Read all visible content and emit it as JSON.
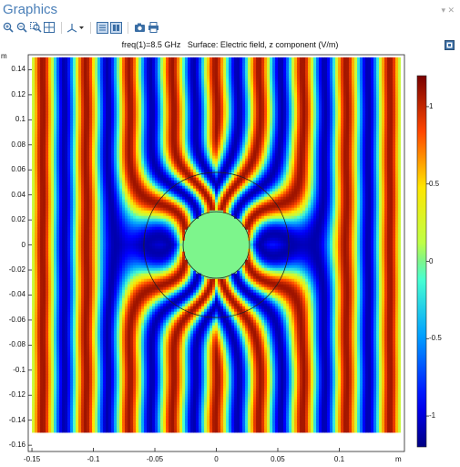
{
  "window": {
    "title": "Graphics",
    "controls": "▾ ✕"
  },
  "toolbar": {
    "buttons": [
      {
        "name": "zoom-in-icon",
        "hint": "Zoom In"
      },
      {
        "name": "zoom-out-icon",
        "hint": "Zoom Out"
      },
      {
        "name": "zoom-box-icon",
        "hint": "Zoom Box"
      },
      {
        "name": "zoom-extents-icon",
        "hint": "Zoom Extents"
      },
      {
        "name": "axis-orientation-icon",
        "hint": "Go to Default View"
      },
      {
        "name": "grid-toggle-icon",
        "hint": "Show Grid"
      },
      {
        "name": "axis-toggle-icon",
        "hint": "Show Axis"
      },
      {
        "name": "camera-icon",
        "hint": "Image Snapshot"
      },
      {
        "name": "print-icon",
        "hint": "Print"
      }
    ]
  },
  "plot": {
    "title": "freq(1)=8.5 GHz   Surface: Electric field, z component (V/m)",
    "y_unit": "m",
    "x_unit": "m"
  },
  "chart_data": {
    "type": "heatmap",
    "title": "freq(1)=8.5 GHz   Surface: Electric field, z component (V/m)",
    "quantity": "Electric field, z component (V/m)",
    "frequency": "8.5 GHz",
    "xlabel": "m",
    "ylabel": "m",
    "xlim": [
      -0.153,
      0.153
    ],
    "ylim": [
      -0.165,
      0.152
    ],
    "field_window": {
      "x": [
        -0.15,
        0.15
      ],
      "y": [
        -0.15,
        0.15
      ]
    },
    "x_ticks": [
      -0.15,
      -0.1,
      -0.05,
      0,
      0.05,
      0.1
    ],
    "x_tick_labels": [
      "-0.15",
      "-0.1",
      "-0.05",
      "0",
      "0.05",
      "0.1"
    ],
    "y_ticks": [
      0.14,
      0.12,
      0.1,
      0.08,
      0.06,
      0.04,
      0.02,
      0,
      -0.02,
      -0.04,
      -0.06,
      -0.08,
      -0.1,
      -0.12,
      -0.14,
      -0.16
    ],
    "y_tick_labels": [
      "0.14",
      "0.12",
      "0.1",
      "0.08",
      "0.06",
      "0.04",
      "0.02",
      "0",
      "-0.02",
      "-0.04",
      "-0.06",
      "-0.08",
      "-0.1",
      "-0.12",
      "-0.14",
      "-0.16"
    ],
    "colorbar": {
      "colormap": "rainbow",
      "range": [
        -1.2,
        1.2
      ],
      "ticks": [
        1,
        0.5,
        0,
        -0.5,
        -1
      ],
      "tick_labels": [
        "1",
        "0.5",
        "0",
        "-0.5",
        "-1"
      ]
    },
    "geometry": {
      "inner_circle_radius": 0.027,
      "outer_circle_radius": 0.059,
      "center": [
        0,
        0
      ]
    },
    "wave_wavelength_m": 0.0353,
    "interior_value": 0
  }
}
